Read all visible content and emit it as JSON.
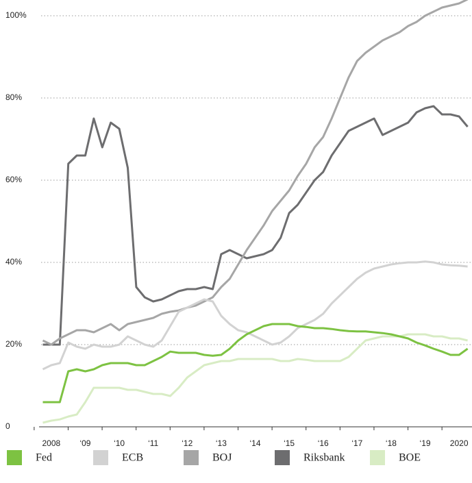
{
  "chart_data": {
    "type": "line",
    "x": [
      2007.75,
      2008,
      2008.25,
      2008.5,
      2008.75,
      2009,
      2009.25,
      2009.5,
      2009.75,
      2010,
      2010.25,
      2010.5,
      2010.75,
      2011,
      2011.25,
      2011.5,
      2011.75,
      2012,
      2012.25,
      2012.5,
      2012.75,
      2013,
      2013.25,
      2013.5,
      2013.75,
      2014,
      2014.25,
      2014.5,
      2014.75,
      2015,
      2015.25,
      2015.5,
      2015.75,
      2016,
      2016.25,
      2016.5,
      2016.75,
      2017,
      2017.25,
      2017.5,
      2017.75,
      2018,
      2018.25,
      2018.5,
      2018.75,
      2019,
      2019.25,
      2019.5,
      2019.75,
      2020,
      2020.25
    ],
    "series": [
      {
        "name": "Fed",
        "color": "#7dc242",
        "values": [
          6,
          6,
          6,
          13.5,
          14,
          13.5,
          14,
          15,
          15.5,
          15.5,
          15.5,
          15,
          15,
          16,
          17,
          18.3,
          18,
          18,
          18,
          17.5,
          17.3,
          17.5,
          19,
          21,
          22.5,
          23.5,
          24.5,
          25,
          25,
          25,
          24.5,
          24.3,
          24,
          24,
          23.8,
          23.5,
          23.3,
          23.2,
          23.2,
          23,
          22.8,
          22.5,
          22,
          21.5,
          20.5,
          19.8,
          19,
          18.3,
          17.5,
          17.5,
          19
        ]
      },
      {
        "name": "ECB",
        "color": "#d2d2d2",
        "values": [
          14,
          15,
          15.5,
          20.5,
          19.5,
          19,
          20,
          19.5,
          19.5,
          20,
          22,
          21,
          20,
          19.5,
          21,
          24.5,
          28,
          29,
          30,
          31,
          30.5,
          27,
          25,
          23.5,
          23,
          22,
          21,
          20,
          20.5,
          22,
          24,
          25,
          26,
          27.5,
          30,
          32,
          34,
          36,
          37.5,
          38.5,
          39,
          39.5,
          39.8,
          40,
          40,
          40.2,
          40,
          39.5,
          39.3,
          39.2,
          39
        ]
      },
      {
        "name": "BOJ",
        "color": "#a6a6a6",
        "values": [
          21,
          20,
          21.5,
          22.5,
          23.5,
          23.5,
          23,
          24,
          25,
          23.5,
          25,
          25.5,
          26,
          26.5,
          27.5,
          28,
          28.3,
          29,
          29.5,
          30.5,
          31.5,
          34,
          36,
          39.5,
          43,
          46,
          49,
          52.5,
          55,
          57.5,
          61,
          64,
          68,
          70.5,
          75,
          80,
          85,
          89,
          91,
          92.5,
          94,
          95,
          96,
          97.5,
          98.5,
          100,
          101,
          102,
          102.5,
          103,
          104
        ]
      },
      {
        "name": "Riksbank",
        "color": "#6d6d6f",
        "values": [
          20,
          20,
          20,
          64,
          66,
          66,
          75,
          68,
          74,
          72.5,
          63,
          34,
          31.5,
          30.5,
          31,
          32,
          33,
          33.5,
          33.5,
          34,
          33.5,
          42,
          43,
          42,
          41,
          41.5,
          42,
          43,
          46,
          52,
          54,
          57,
          60,
          62,
          66,
          69,
          72,
          73,
          74,
          75,
          71,
          72,
          73,
          74,
          76.5,
          77.5,
          78,
          76,
          76,
          75.5,
          73
        ]
      },
      {
        "name": "BOE",
        "color": "#d8ecc4",
        "values": [
          1,
          1.5,
          1.8,
          2.5,
          3,
          6,
          9.5,
          9.5,
          9.5,
          9.5,
          9,
          9,
          8.5,
          8,
          8,
          7.5,
          9.5,
          12,
          13.5,
          15,
          15.5,
          16,
          16,
          16.5,
          16.5,
          16.5,
          16.5,
          16.5,
          16,
          16,
          16.5,
          16.3,
          16,
          16,
          16,
          16,
          17,
          19,
          21,
          21.5,
          22,
          22,
          22,
          22.5,
          22.5,
          22.5,
          22,
          22,
          21.5,
          21.5,
          21
        ]
      }
    ],
    "xlim": [
      2007.64,
      2020.38
    ],
    "xticks": [
      {
        "value": 2008,
        "label": "2008"
      },
      {
        "value": 2009,
        "label": "‘09"
      },
      {
        "value": 2010,
        "label": "‘10"
      },
      {
        "value": 2011,
        "label": "‘11"
      },
      {
        "value": 2012,
        "label": "‘12"
      },
      {
        "value": 2013,
        "label": "‘13"
      },
      {
        "value": 2014,
        "label": "‘14"
      },
      {
        "value": 2015,
        "label": "‘15"
      },
      {
        "value": 2016,
        "label": "‘16"
      },
      {
        "value": 2017,
        "label": "‘17"
      },
      {
        "value": 2018,
        "label": "‘18"
      },
      {
        "value": 2019,
        "label": "‘19"
      },
      {
        "value": 2020,
        "label": "2020"
      }
    ],
    "ylim": [
      0,
      100
    ],
    "yticks": [
      0,
      {
        "value": 20,
        "label": "20%"
      },
      {
        "value": 40,
        "label": "40%"
      },
      {
        "value": 60,
        "label": "60%"
      },
      {
        "value": 80,
        "label": "80%"
      },
      {
        "value": 100,
        "label": "100%"
      }
    ],
    "grid": true
  }
}
